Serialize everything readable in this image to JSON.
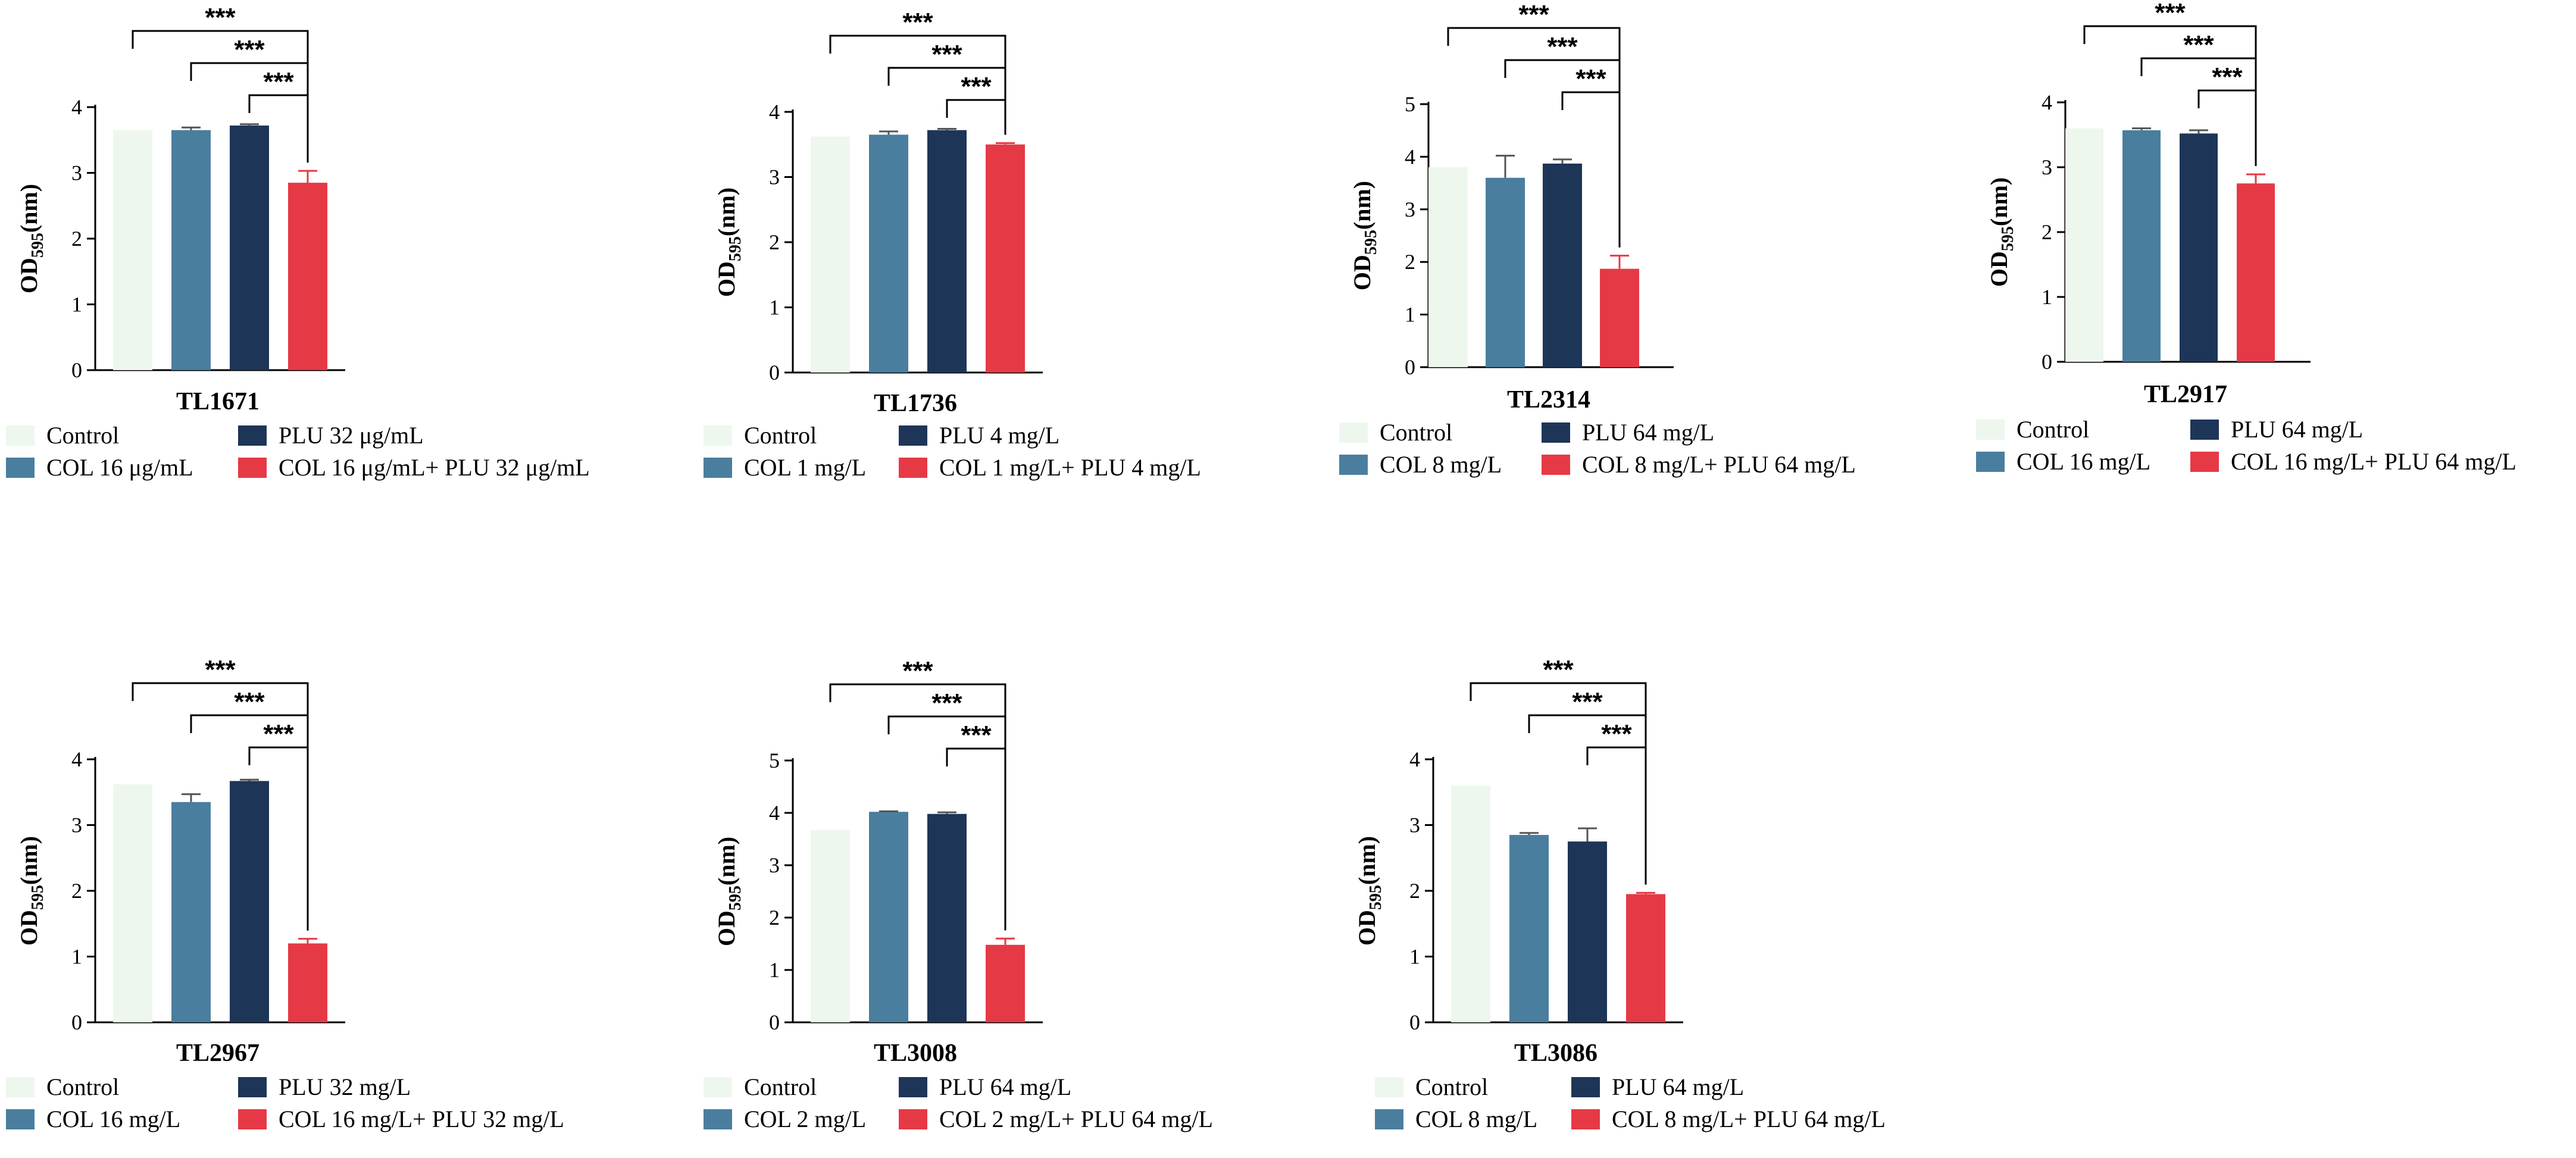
{
  "figure": {
    "ylabel_main": "OD",
    "ylabel_sub": "595",
    "ylabel_unit": "(nm)",
    "colors": [
      "#eef7ee",
      "#4a7e9e",
      "#1d3557",
      "#e63946"
    ],
    "error_color": "#555555",
    "bracket_color": "#000000"
  },
  "chart_data": [
    {
      "type": "bar",
      "title": "TL1671",
      "categories": [
        "Control",
        "COL 16 μg/mL",
        "PLU 32 μg/mL",
        "COL 16 μg/mL+ PLU 32 μg/mL"
      ],
      "values": [
        3.65,
        3.65,
        3.72,
        2.85
      ],
      "errors": [
        0.0,
        0.04,
        0.02,
        0.18
      ],
      "ylim": [
        0,
        4
      ],
      "yticks": [
        "0",
        "1",
        "2",
        "3",
        "4"
      ],
      "significance": [
        "***",
        "***",
        "***"
      ],
      "legend": [
        "Control",
        "COL 16 μg/mL",
        "PLU 32 μg/mL",
        "COL 16 μg/mL+ PLU 32 μg/mL"
      ]
    },
    {
      "type": "bar",
      "title": "TL1736",
      "categories": [
        "Control",
        "COL 1 mg/L",
        "PLU 4 mg/L",
        "COL 1 mg/L+ PLU 4 mg/L"
      ],
      "values": [
        3.62,
        3.65,
        3.72,
        3.5
      ],
      "errors": [
        0.0,
        0.05,
        0.02,
        0.02
      ],
      "ylim": [
        0,
        4
      ],
      "yticks": [
        "0",
        "1",
        "2",
        "3",
        "4"
      ],
      "significance": [
        "***",
        "***",
        "***"
      ],
      "legend": [
        "Control",
        "COL 1 mg/L",
        "PLU 4 mg/L",
        "COL 1 mg/L+ PLU 4 mg/L"
      ]
    },
    {
      "type": "bar",
      "title": "TL2314",
      "categories": [
        "Control",
        "COL 8 mg/L",
        "PLU 64 mg/L",
        "COL 8 mg/L+ PLU 64 mg/L"
      ],
      "values": [
        3.8,
        3.6,
        3.87,
        1.87
      ],
      "errors": [
        0.0,
        0.42,
        0.08,
        0.25
      ],
      "ylim": [
        0,
        5
      ],
      "yticks": [
        "0",
        "1",
        "2",
        "3",
        "4",
        "5"
      ],
      "significance": [
        "***",
        "***",
        "***"
      ],
      "legend": [
        "Control",
        "COL 8 mg/L",
        "PLU 64 mg/L",
        "COL 8 mg/L+ PLU 64 mg/L"
      ]
    },
    {
      "type": "bar",
      "title": "TL2917",
      "categories": [
        "Control",
        "COL 16 mg/L",
        "PLU 64 mg/L",
        "COL 16 mg/L+ PLU 64 mg/L"
      ],
      "values": [
        3.6,
        3.57,
        3.52,
        2.75
      ],
      "errors": [
        0.0,
        0.03,
        0.05,
        0.14
      ],
      "ylim": [
        0,
        4
      ],
      "yticks": [
        "0",
        "1",
        "2",
        "3",
        "4"
      ],
      "significance": [
        "***",
        "***",
        "***"
      ],
      "legend": [
        "Control",
        "COL 16 mg/L",
        "PLU 64 mg/L",
        "COL 16 mg/L+ PLU 64 mg/L"
      ]
    },
    {
      "type": "bar",
      "title": "TL2967",
      "categories": [
        "Control",
        "COL 16 mg/L",
        "PLU 32 mg/L",
        "COL 16 mg/L+ PLU 32 mg/L"
      ],
      "values": [
        3.62,
        3.35,
        3.67,
        1.2
      ],
      "errors": [
        0.0,
        0.12,
        0.02,
        0.07
      ],
      "ylim": [
        0,
        4
      ],
      "yticks": [
        "0",
        "1",
        "2",
        "3",
        "4"
      ],
      "significance": [
        "***",
        "***",
        "***"
      ],
      "legend": [
        "Control",
        "COL 16 mg/L",
        "PLU 32 mg/L",
        "COL 16 mg/L+ PLU 32 mg/L"
      ]
    },
    {
      "type": "bar",
      "title": "TL3008",
      "categories": [
        "Control",
        "COL 2 mg/L",
        "PLU 64 mg/L",
        "COL 2 mg/L+ PLU 64 mg/L"
      ],
      "values": [
        3.67,
        4.02,
        3.98,
        1.48
      ],
      "errors": [
        0.0,
        0.01,
        0.03,
        0.12
      ],
      "ylim": [
        0,
        5
      ],
      "yticks": [
        "0",
        "1",
        "2",
        "3",
        "4",
        "5"
      ],
      "significance": [
        "***",
        "***",
        "***"
      ],
      "legend": [
        "Control",
        "COL 2 mg/L",
        "PLU 64 mg/L",
        "COL 2 mg/L+ PLU 64 mg/L"
      ]
    },
    {
      "type": "bar",
      "title": "TL3086",
      "categories": [
        "Control",
        "COL 8 mg/L",
        "PLU 64 mg/L",
        "COL 8 mg/L+ PLU 64 mg/L"
      ],
      "values": [
        3.6,
        2.85,
        2.75,
        1.95
      ],
      "errors": [
        0.0,
        0.03,
        0.2,
        0.02
      ],
      "ylim": [
        0,
        4
      ],
      "yticks": [
        "0",
        "1",
        "2",
        "3",
        "4"
      ],
      "significance": [
        "***",
        "***",
        "***"
      ],
      "legend": [
        "Control",
        "COL 8 mg/L",
        "PLU 64 mg/L",
        "COL 8 mg/L+ PLU 64 mg/L"
      ]
    }
  ]
}
